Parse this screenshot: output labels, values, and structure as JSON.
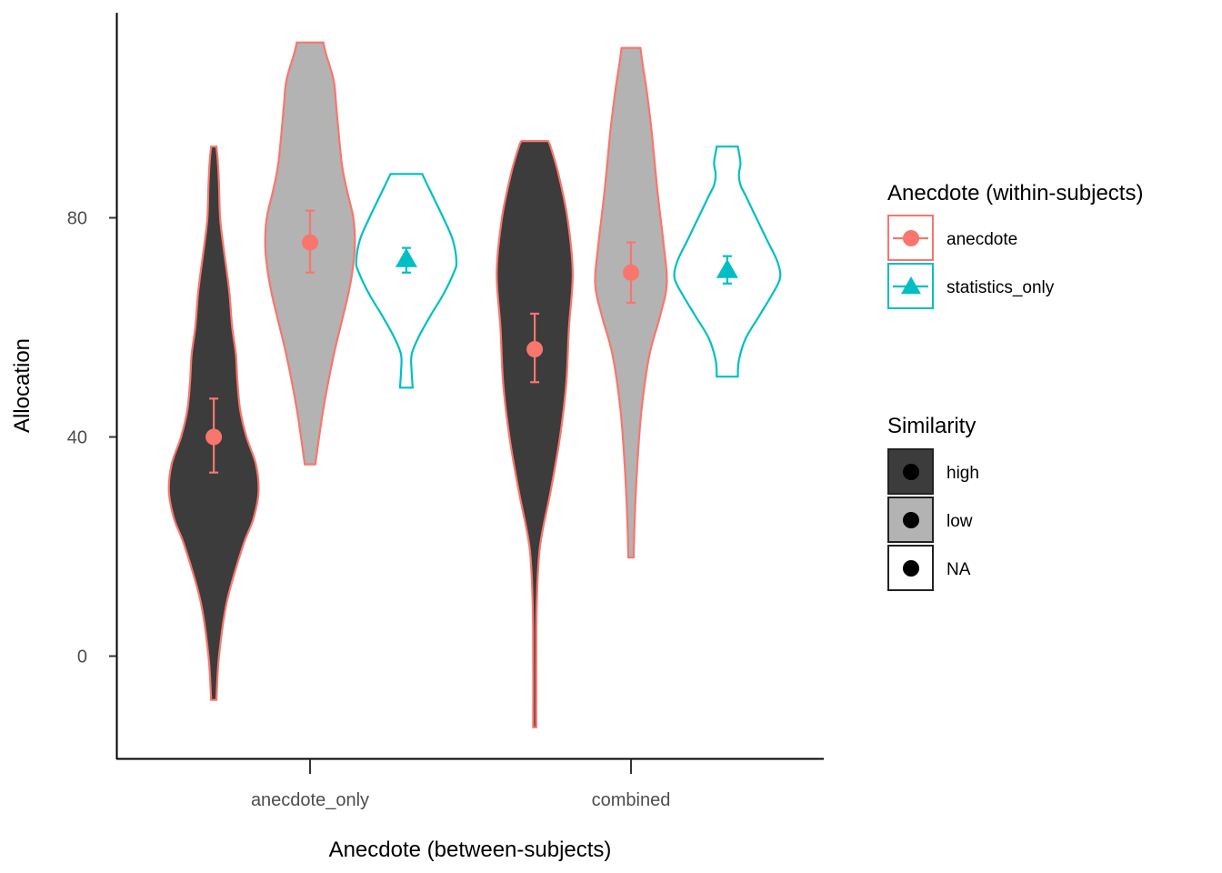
{
  "chart_data": {
    "type": "violin",
    "title": "",
    "xlabel": "Anecdote (between-subjects)",
    "ylabel": "Allocation",
    "categories": [
      "anecdote_only",
      "combined"
    ],
    "ylim": [
      -18.5,
      118.5
    ],
    "yticks": [
      0,
      40,
      80
    ],
    "grid": false,
    "colors": {
      "anecdote": "#F8766D",
      "statistics_only": "#00BFC4",
      "high": "#3c3c3c",
      "low": "#b3b3b3",
      "NA": "#ffffff"
    },
    "violins": [
      {
        "category": "anecdote_only",
        "offset": -0.3,
        "group": "anecdote",
        "similarity": "high",
        "mean": 40,
        "ci": [
          33.5,
          47
        ],
        "profile": [
          [
            -8,
            0.05
          ],
          [
            0,
            0.1
          ],
          [
            10,
            0.25
          ],
          [
            20,
            0.55
          ],
          [
            25,
            0.75
          ],
          [
            30,
            0.85
          ],
          [
            35,
            0.8
          ],
          [
            40,
            0.62
          ],
          [
            45,
            0.5
          ],
          [
            50,
            0.45
          ],
          [
            55,
            0.42
          ],
          [
            60,
            0.35
          ],
          [
            66,
            0.3
          ],
          [
            70,
            0.25
          ],
          [
            75,
            0.18
          ],
          [
            80,
            0.12
          ],
          [
            86,
            0.1
          ],
          [
            90,
            0.08
          ],
          [
            93,
            0.05
          ]
        ]
      },
      {
        "category": "anecdote_only",
        "offset": 0,
        "group": "anecdote",
        "similarity": "low",
        "mean": 75.5,
        "ci": [
          70,
          81.3
        ],
        "profile": [
          [
            35,
            0.1
          ],
          [
            45,
            0.25
          ],
          [
            55,
            0.45
          ],
          [
            65,
            0.7
          ],
          [
            70,
            0.8
          ],
          [
            75,
            0.85
          ],
          [
            80,
            0.82
          ],
          [
            85,
            0.7
          ],
          [
            90,
            0.6
          ],
          [
            100,
            0.5
          ],
          [
            105,
            0.45
          ],
          [
            110,
            0.3
          ],
          [
            112,
            0.25
          ]
        ]
      },
      {
        "category": "anecdote_only",
        "offset": 0.3,
        "group": "statistics_only",
        "similarity": "NA",
        "mean": 72.5,
        "ci": [
          70,
          74.5
        ],
        "profile": [
          [
            49,
            0.12
          ],
          [
            52,
            0.1
          ],
          [
            55,
            0.1
          ],
          [
            58,
            0.22
          ],
          [
            62,
            0.45
          ],
          [
            66,
            0.7
          ],
          [
            70,
            0.9
          ],
          [
            72,
            0.95
          ],
          [
            76,
            0.88
          ],
          [
            80,
            0.7
          ],
          [
            84,
            0.5
          ],
          [
            88,
            0.3
          ]
        ]
      },
      {
        "category": "combined",
        "offset": -0.3,
        "group": "anecdote",
        "similarity": "high",
        "mean": 56,
        "ci": [
          50,
          62.5
        ],
        "profile": [
          [
            -13,
            0.03
          ],
          [
            0,
            0.03
          ],
          [
            10,
            0.04
          ],
          [
            20,
            0.1
          ],
          [
            30,
            0.3
          ],
          [
            40,
            0.48
          ],
          [
            50,
            0.6
          ],
          [
            60,
            0.65
          ],
          [
            70,
            0.72
          ],
          [
            80,
            0.62
          ],
          [
            88,
            0.45
          ],
          [
            93,
            0.3
          ],
          [
            94,
            0.25
          ]
        ]
      },
      {
        "category": "combined",
        "offset": 0,
        "group": "anecdote",
        "similarity": "low",
        "mean": 70,
        "ci": [
          64.5,
          75.5
        ],
        "profile": [
          [
            18,
            0.05
          ],
          [
            25,
            0.07
          ],
          [
            35,
            0.12
          ],
          [
            45,
            0.2
          ],
          [
            55,
            0.35
          ],
          [
            62,
            0.55
          ],
          [
            68,
            0.68
          ],
          [
            75,
            0.62
          ],
          [
            85,
            0.5
          ],
          [
            95,
            0.4
          ],
          [
            103,
            0.3
          ],
          [
            108,
            0.22
          ],
          [
            111,
            0.18
          ]
        ]
      },
      {
        "category": "combined",
        "offset": 0.3,
        "group": "statistics_only",
        "similarity": "NA",
        "mean": 70.5,
        "ci": [
          68,
          73
        ],
        "profile": [
          [
            51,
            0.2
          ],
          [
            54,
            0.22
          ],
          [
            58,
            0.35
          ],
          [
            62,
            0.6
          ],
          [
            66,
            0.85
          ],
          [
            69,
            1.0
          ],
          [
            72,
            0.95
          ],
          [
            76,
            0.75
          ],
          [
            80,
            0.55
          ],
          [
            84,
            0.35
          ],
          [
            86,
            0.25
          ],
          [
            88,
            0.22
          ],
          [
            90,
            0.25
          ],
          [
            93,
            0.2
          ]
        ]
      }
    ],
    "legends": [
      {
        "title": "Anecdote (within-subjects)",
        "items": [
          "anecdote",
          "statistics_only"
        ],
        "placement": "right"
      },
      {
        "title": "Similarity",
        "items": [
          "high",
          "low",
          "NA"
        ],
        "placement": "right"
      }
    ]
  }
}
